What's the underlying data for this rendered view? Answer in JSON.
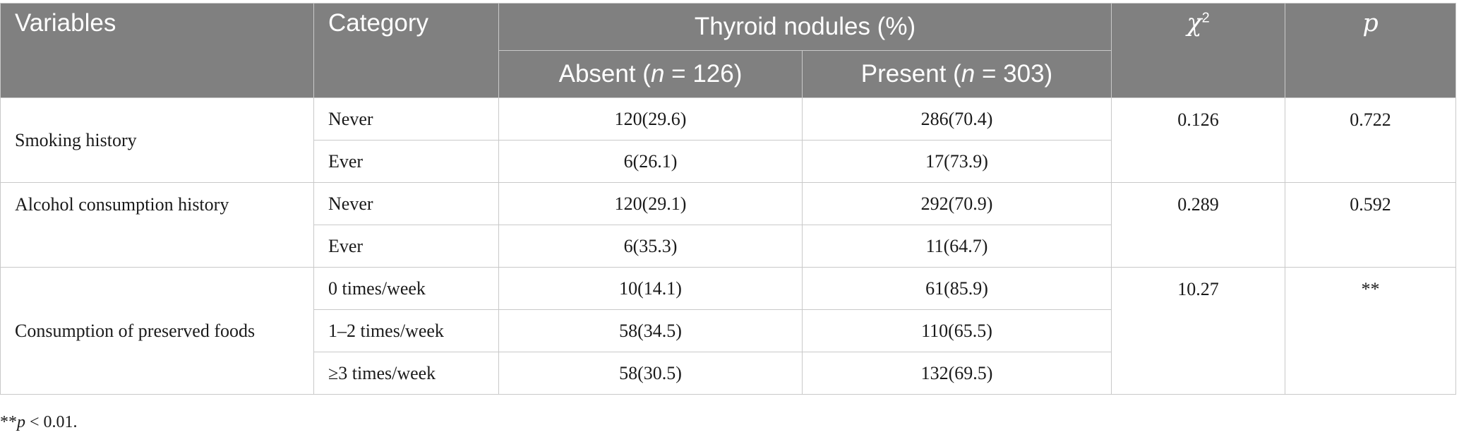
{
  "header": {
    "variables": "Variables",
    "category": "Category",
    "group": "Thyroid nodules (%)",
    "absent_prefix": "Absent (",
    "absent_n": "n",
    "absent_suffix": " = 126)",
    "present_prefix": "Present (",
    "present_n": "n",
    "present_suffix": " = 303)",
    "chi_symbol": "χ",
    "chi_sup": "2",
    "p_label": "p"
  },
  "groups": [
    {
      "variable": "Smoking history",
      "chi2": "0.126",
      "p": "0.722",
      "rows": [
        {
          "category": "Never",
          "absent": "120(29.6)",
          "present": "286(70.4)"
        },
        {
          "category": "Ever",
          "absent": "6(26.1)",
          "present": "17(73.9)"
        }
      ]
    },
    {
      "variable": "Alcohol consumption history",
      "chi2": "0.289",
      "p": "0.592",
      "rows": [
        {
          "category": "Never",
          "absent": "120(29.1)",
          "present": "292(70.9)"
        },
        {
          "category": "Ever",
          "absent": "6(35.3)",
          "present": "11(64.7)"
        }
      ]
    },
    {
      "variable": "Consumption of preserved foods",
      "chi2": "10.27",
      "p": "**",
      "rows": [
        {
          "category": "0 times/week",
          "absent": "10(14.1)",
          "present": "61(85.9)"
        },
        {
          "category": "1–2 times/week",
          "absent": "58(34.5)",
          "present": "110(65.5)"
        },
        {
          "category": "≥3 times/week",
          "absent": "58(30.5)",
          "present": "132(69.5)"
        }
      ]
    }
  ],
  "footnote": {
    "stars": "**",
    "p": "p",
    "rest": " < 0.01."
  }
}
